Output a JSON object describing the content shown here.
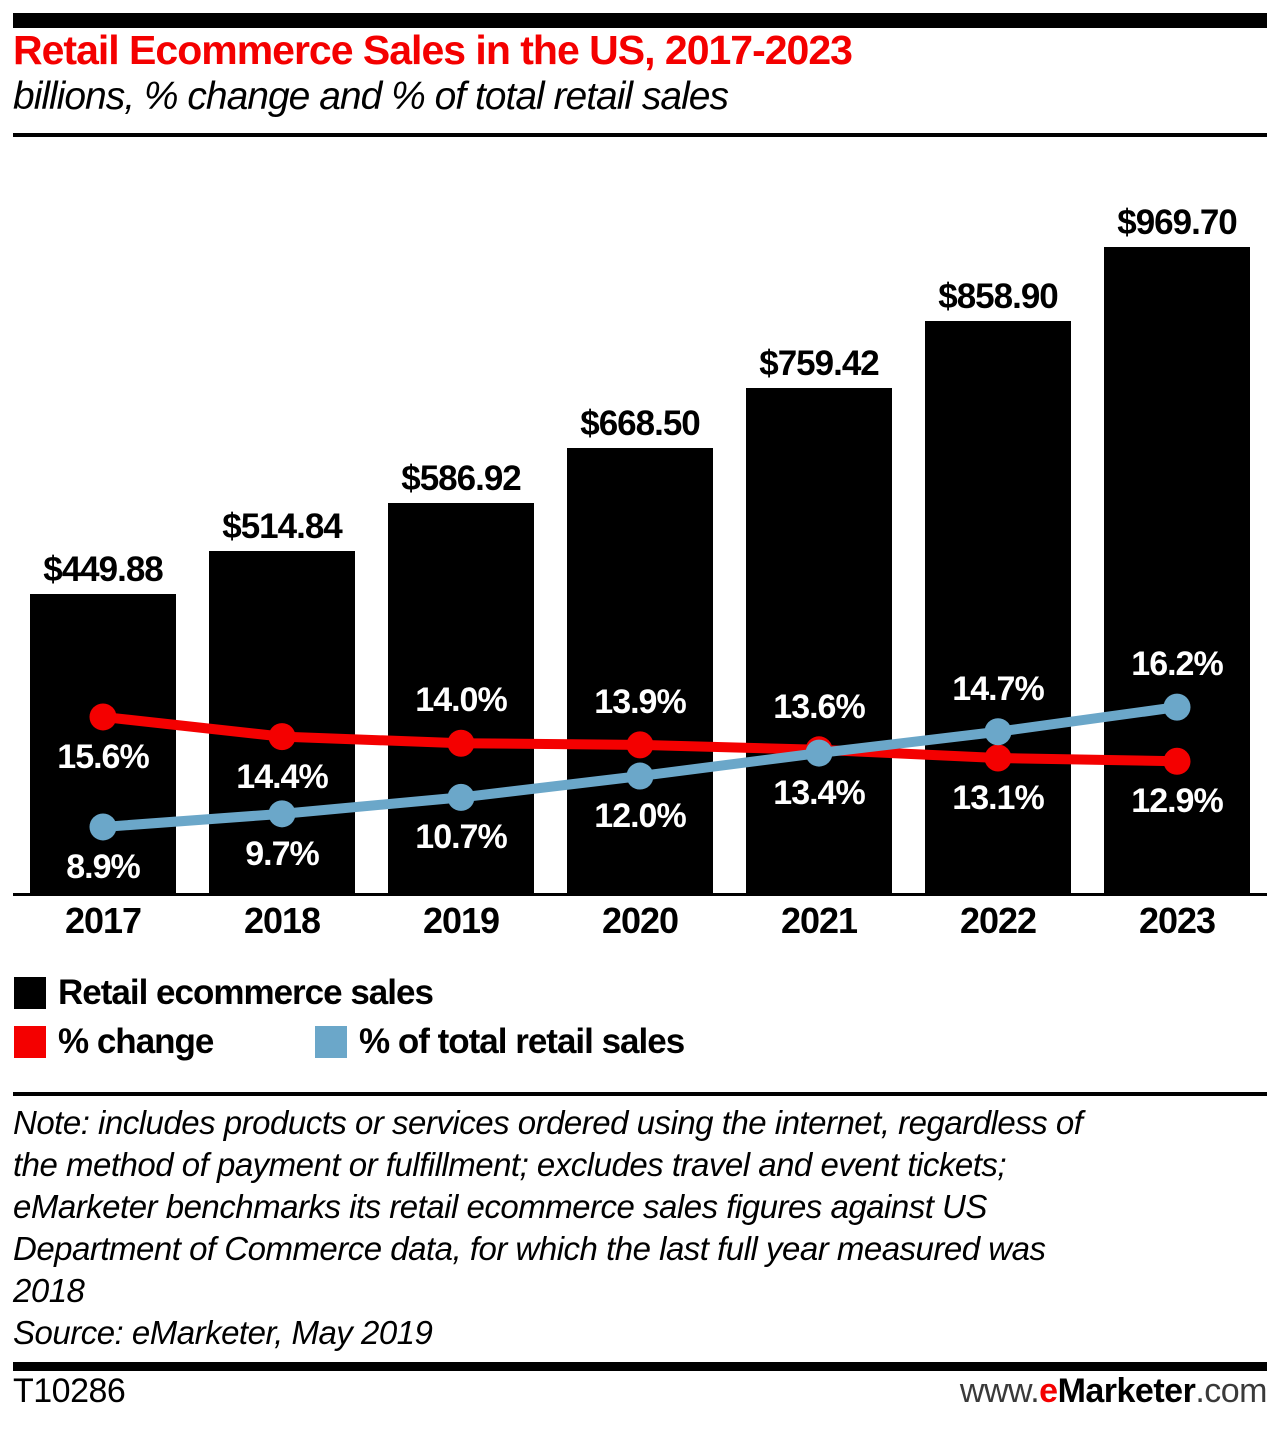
{
  "header": {
    "title": "Retail Ecommerce Sales in the US, 2017-2023",
    "subtitle": "billions, % change and % of total retail sales",
    "title_color": "#F40000"
  },
  "chart_data": {
    "type": "bar",
    "title": "Retail Ecommerce Sales in the US, 2017-2023",
    "subtitle": "billions, % change and % of total retail sales",
    "categories": [
      "2017",
      "2018",
      "2019",
      "2020",
      "2021",
      "2022",
      "2023"
    ],
    "bars": {
      "name": "Retail ecommerce sales",
      "unit": "billions of US dollars",
      "color": "#000000",
      "values": [
        449.88,
        514.84,
        586.92,
        668.5,
        759.42,
        858.9,
        969.7
      ],
      "labels": [
        "$449.88",
        "$514.84",
        "$586.92",
        "$668.50",
        "$759.42",
        "$858.90",
        "$969.70"
      ]
    },
    "lines": [
      {
        "name": "% change",
        "color": "#F40000",
        "values": [
          15.6,
          14.4,
          14.0,
          13.9,
          13.6,
          13.1,
          12.9
        ],
        "labels": [
          "15.6%",
          "14.4%",
          "14.0%",
          "13.9%",
          "13.6%",
          "13.1%",
          "12.9%"
        ],
        "label_positions": [
          "below",
          "below",
          "above",
          "above",
          "above",
          "below",
          "below"
        ]
      },
      {
        "name": "% of total retail sales",
        "color": "#6BA7C9",
        "values": [
          8.9,
          9.7,
          10.7,
          12.0,
          13.4,
          14.7,
          16.2
        ],
        "labels": [
          "8.9%",
          "9.7%",
          "10.7%",
          "12.0%",
          "13.4%",
          "14.7%",
          "16.2%"
        ],
        "label_positions": [
          "below",
          "below",
          "below",
          "below",
          "below",
          "above",
          "above"
        ]
      }
    ],
    "value_axis": {
      "visible": false,
      "min": 0
    },
    "percent_axis": {
      "visible": false
    },
    "grid": false,
    "legend_position": "bottom",
    "data_labels": true
  },
  "legend": {
    "items": [
      {
        "label": "Retail ecommerce sales",
        "color": "#000000",
        "shape": "square"
      },
      {
        "label": "% change",
        "color": "#F40000",
        "shape": "square"
      },
      {
        "label": "% of total retail sales",
        "color": "#6BA7C9",
        "shape": "square"
      }
    ]
  },
  "note": {
    "lines": [
      "Note: includes products or services ordered using the internet, regardless of",
      "the method of payment or fulfillment; excludes travel and event tickets;",
      "eMarketer benchmarks its retail ecommerce sales figures against US",
      "Department of Commerce data, for which the last full year measured was",
      "2018"
    ],
    "source": "Source: eMarketer, May 2019"
  },
  "footer": {
    "id": "T10286",
    "url": {
      "prefix": "www.",
      "e": "e",
      "brand": "Marketer",
      "suffix": ".com"
    },
    "brand_red": "#F40000"
  }
}
